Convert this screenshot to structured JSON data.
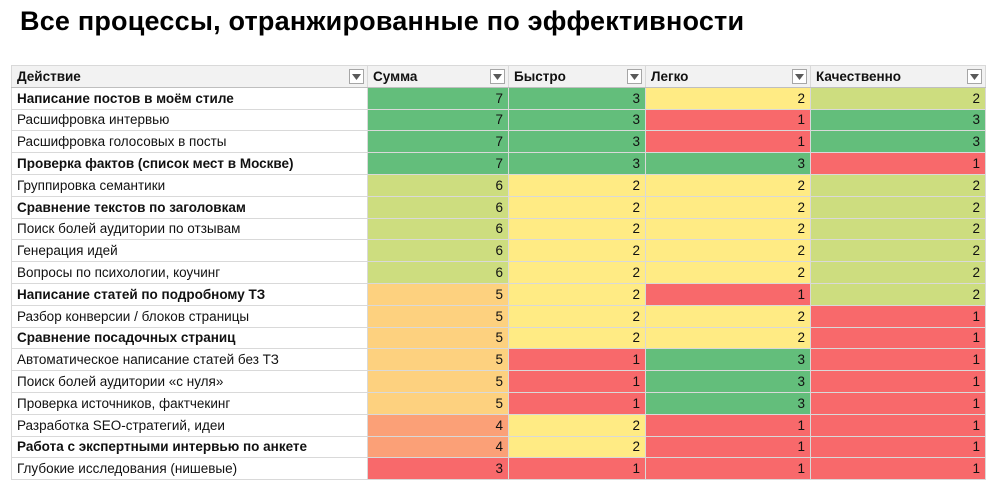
{
  "title": "Все процессы, отранжированные по эффективности",
  "colors": {
    "green": "#63be7b",
    "light_green": "#cddd7f",
    "yellow": "#ffeb84",
    "light_orange": "#fdd17f",
    "orange": "#fba077",
    "red": "#f8696b"
  },
  "chart_data": {
    "type": "table",
    "columns": [
      "Действие",
      "Сумма",
      "Быстро",
      "Легко",
      "Качественно"
    ],
    "rows": [
      {
        "action": "Написание постов в моём стиле",
        "bold": true,
        "values": [
          7,
          3,
          2,
          2
        ]
      },
      {
        "action": "Расшифровка интервью",
        "bold": false,
        "values": [
          7,
          3,
          1,
          3
        ]
      },
      {
        "action": "Расшифровка голосовых в посты",
        "bold": false,
        "values": [
          7,
          3,
          1,
          3
        ]
      },
      {
        "action": "Проверка фактов (список мест в Москве)",
        "bold": true,
        "values": [
          7,
          3,
          3,
          1
        ]
      },
      {
        "action": "Группировка семантики",
        "bold": false,
        "values": [
          6,
          2,
          2,
          2
        ]
      },
      {
        "action": "Сравнение текстов по заголовкам",
        "bold": true,
        "values": [
          6,
          2,
          2,
          2
        ]
      },
      {
        "action": "Поиск болей аудитории по отзывам",
        "bold": false,
        "values": [
          6,
          2,
          2,
          2
        ]
      },
      {
        "action": "Генерация идей",
        "bold": false,
        "values": [
          6,
          2,
          2,
          2
        ]
      },
      {
        "action": "Вопросы по психологии, коучинг",
        "bold": false,
        "values": [
          6,
          2,
          2,
          2
        ]
      },
      {
        "action": "Написание статей по подробному ТЗ",
        "bold": true,
        "values": [
          5,
          2,
          1,
          2
        ]
      },
      {
        "action": "Разбор конверсии / блоков страницы",
        "bold": false,
        "values": [
          5,
          2,
          2,
          1
        ]
      },
      {
        "action": "Сравнение посадочных страниц",
        "bold": true,
        "values": [
          5,
          2,
          2,
          1
        ]
      },
      {
        "action": "Автоматическое написание статей без ТЗ",
        "bold": false,
        "values": [
          5,
          1,
          3,
          1
        ]
      },
      {
        "action": "Поиск болей аудитории «с нуля»",
        "bold": false,
        "values": [
          5,
          1,
          3,
          1
        ]
      },
      {
        "action": "Проверка источников, фактчекинг",
        "bold": false,
        "values": [
          5,
          1,
          3,
          1
        ]
      },
      {
        "action": "Разработка SEO-стратегий, идеи",
        "bold": false,
        "values": [
          4,
          2,
          1,
          1
        ]
      },
      {
        "action": "Работа с экспертными интервью по анкете",
        "bold": true,
        "values": [
          4,
          2,
          1,
          1
        ]
      },
      {
        "action": "Глубокие исследования (нишевые)",
        "bold": false,
        "values": [
          3,
          1,
          1,
          1
        ]
      }
    ]
  }
}
